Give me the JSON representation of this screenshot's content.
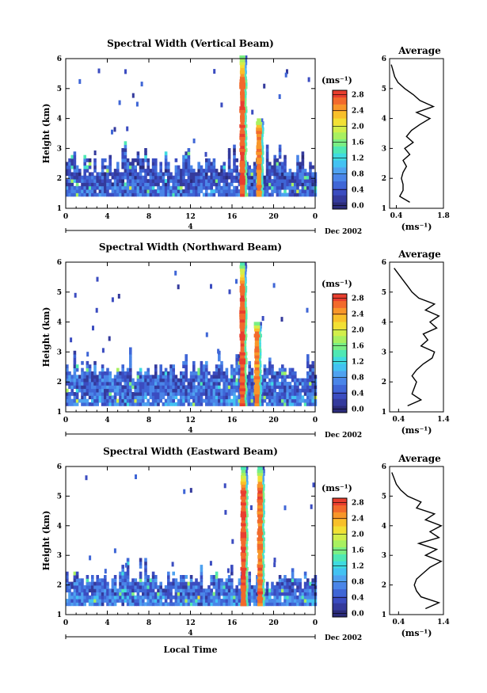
{
  "chart_data": [
    {
      "type": "heatmap",
      "title": "Spectral Width (Vertical Beam)",
      "ylabel": "Height (km)",
      "xlabel": "",
      "x_ticks": [
        "0",
        "4",
        "8",
        "12",
        "16",
        "20",
        "0"
      ],
      "y_ticks": [
        "1",
        "2",
        "3",
        "4",
        "5",
        "6"
      ],
      "xlim": [
        0,
        24
      ],
      "ylim": [
        1,
        6
      ],
      "date_marker": "4",
      "date_label": "Dec 2002",
      "colorbar": {
        "unit": "(ms⁻¹)",
        "ticks": [
          "0.0",
          "0.4",
          "0.8",
          "1.2",
          "1.6",
          "2.0",
          "2.4",
          "2.8"
        ],
        "range": [
          0.0,
          3.0
        ]
      },
      "echo_layer": {
        "top_km": 2.5,
        "base_km": 1.4,
        "typical_width": 0.5
      },
      "high_width_columns": [
        {
          "hour": 17.0,
          "top_km": 6.0,
          "width": 2.8
        },
        {
          "hour": 18.6,
          "top_km": 4.0,
          "width": 2.6
        }
      ],
      "profile": {
        "title": "Average",
        "xlabel": "(ms⁻¹)",
        "x_ticks": [
          "0.4",
          "1.8"
        ],
        "y_ticks": [
          "1",
          "2",
          "3",
          "4",
          "5",
          "6"
        ],
        "xlim": [
          0.2,
          1.8
        ],
        "height_km": [
          1.2,
          1.4,
          1.6,
          1.8,
          2.0,
          2.2,
          2.4,
          2.6,
          2.8,
          3.0,
          3.2,
          3.4,
          3.6,
          3.8,
          4.0,
          4.2,
          4.4,
          4.6,
          4.8,
          5.0,
          5.2,
          5.4,
          5.6,
          5.8
        ],
        "width": [
          0.8,
          0.5,
          0.6,
          0.6,
          0.55,
          0.6,
          0.7,
          0.6,
          0.8,
          0.65,
          0.9,
          0.7,
          0.85,
          1.1,
          1.4,
          1.0,
          1.5,
          1.1,
          0.9,
          0.65,
          0.45,
          0.35,
          0.3,
          0.25
        ]
      }
    },
    {
      "type": "heatmap",
      "title": "Spectral Width (Northward Beam)",
      "ylabel": "Height (km)",
      "xlabel": "",
      "x_ticks": [
        "0",
        "4",
        "8",
        "12",
        "16",
        "20",
        "0"
      ],
      "y_ticks": [
        "1",
        "2",
        "3",
        "4",
        "5",
        "6"
      ],
      "xlim": [
        0,
        24
      ],
      "ylim": [
        1,
        6
      ],
      "date_marker": "4",
      "date_label": "Dec 2002",
      "colorbar": {
        "unit": "(ms⁻¹)",
        "ticks": [
          "0.0",
          "0.4",
          "0.8",
          "1.2",
          "1.6",
          "2.0",
          "2.4",
          "2.8"
        ],
        "range": [
          0.0,
          3.0
        ]
      },
      "echo_layer": {
        "top_km": 2.4,
        "base_km": 1.2,
        "typical_width": 0.6
      },
      "high_width_columns": [
        {
          "hour": 17.0,
          "top_km": 5.9,
          "width": 2.8
        },
        {
          "hour": 18.4,
          "top_km": 4.0,
          "width": 2.6
        }
      ],
      "profile": {
        "title": "Average",
        "xlabel": "(ms⁻¹)",
        "x_ticks": [
          "0.4",
          "1.4"
        ],
        "y_ticks": [
          "1",
          "2",
          "3",
          "4",
          "5",
          "6"
        ],
        "xlim": [
          0.2,
          1.4
        ],
        "height_km": [
          1.2,
          1.4,
          1.6,
          1.8,
          2.0,
          2.2,
          2.4,
          2.6,
          2.8,
          3.0,
          3.2,
          3.4,
          3.6,
          3.8,
          4.0,
          4.2,
          4.4,
          4.6,
          4.8,
          5.0,
          5.2,
          5.4,
          5.6,
          5.8
        ],
        "width": [
          0.6,
          0.9,
          0.7,
          0.75,
          0.8,
          0.7,
          0.8,
          0.95,
          1.15,
          1.2,
          0.9,
          1.05,
          0.95,
          1.25,
          1.1,
          1.3,
          1.0,
          1.2,
          0.85,
          0.7,
          0.6,
          0.5,
          0.4,
          0.3
        ]
      }
    },
    {
      "type": "heatmap",
      "title": "Spectral Width (Eastward Beam)",
      "ylabel": "Height (km)",
      "xlabel": "Local Time",
      "x_ticks": [
        "0",
        "4",
        "8",
        "12",
        "16",
        "20",
        "0"
      ],
      "y_ticks": [
        "1",
        "2",
        "3",
        "4",
        "5",
        "6"
      ],
      "xlim": [
        0,
        24
      ],
      "ylim": [
        1,
        6
      ],
      "date_marker": "4",
      "date_label": "Dec 2002",
      "colorbar": {
        "unit": "(ms⁻¹)",
        "ticks": [
          "0.0",
          "0.4",
          "0.8",
          "1.2",
          "1.6",
          "2.0",
          "2.4",
          "2.8"
        ],
        "range": [
          0.0,
          3.0
        ]
      },
      "echo_layer": {
        "top_km": 2.2,
        "base_km": 1.3,
        "typical_width": 0.6
      },
      "high_width_columns": [
        {
          "hour": 17.1,
          "top_km": 5.9,
          "width": 2.8
        },
        {
          "hour": 18.7,
          "top_km": 5.9,
          "width": 2.7
        }
      ],
      "profile": {
        "title": "Average",
        "xlabel": "(ms⁻¹)",
        "x_ticks": [
          "0.4",
          "1.4"
        ],
        "y_ticks": [
          "1",
          "2",
          "3",
          "4",
          "5",
          "6"
        ],
        "xlim": [
          0.2,
          1.4
        ],
        "height_km": [
          1.2,
          1.4,
          1.6,
          1.8,
          2.0,
          2.2,
          2.4,
          2.6,
          2.8,
          3.0,
          3.2,
          3.4,
          3.6,
          3.8,
          4.0,
          4.2,
          4.4,
          4.6,
          4.8,
          5.0,
          5.2,
          5.4,
          5.6,
          5.8
        ],
        "width": [
          1.0,
          1.3,
          0.9,
          0.8,
          0.75,
          0.8,
          0.95,
          1.1,
          1.35,
          1.0,
          1.25,
          0.85,
          1.3,
          1.1,
          1.35,
          1.0,
          1.2,
          0.8,
          0.9,
          0.6,
          0.45,
          0.35,
          0.3,
          0.25
        ]
      }
    }
  ]
}
